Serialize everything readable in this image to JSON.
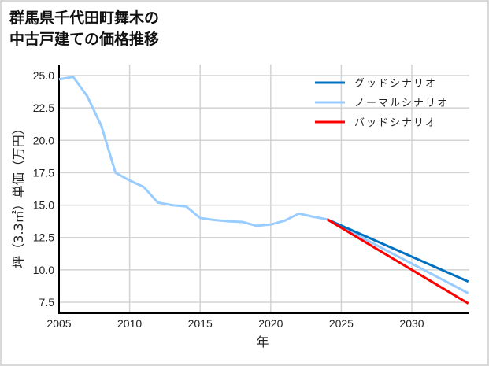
{
  "title_line1": "群馬県千代田町舞木の",
  "title_line2": "中古戸建ての価格推移",
  "chart_data": {
    "type": "line",
    "title": "群馬県千代田町舞木の中古戸建ての価格推移",
    "xlabel": "年",
    "ylabel": "坪（3.3㎡）単価（万円）",
    "xlim": [
      2005,
      2034
    ],
    "ylim": [
      6.6,
      25.7
    ],
    "x_ticks": [
      2005,
      2010,
      2015,
      2020,
      2025,
      2030
    ],
    "y_ticks": [
      7.5,
      10.0,
      12.5,
      15.0,
      17.5,
      20.0,
      22.5,
      25.0
    ],
    "grid": true,
    "legend_position": "upper right",
    "series": [
      {
        "name": "グッドシナリオ",
        "color": "#0070c0",
        "x": [
          2024,
          2034
        ],
        "values": [
          13.9,
          9.1
        ]
      },
      {
        "name": "ノーマルシナリオ",
        "color": "#99ccff",
        "x": [
          2005,
          2006,
          2007,
          2008,
          2009,
          2010,
          2011,
          2012,
          2013,
          2014,
          2015,
          2016,
          2017,
          2018,
          2019,
          2020,
          2021,
          2022,
          2023,
          2024,
          2034
        ],
        "values": [
          24.7,
          24.9,
          23.4,
          21.1,
          17.5,
          16.9,
          16.4,
          15.2,
          15.0,
          14.9,
          14.0,
          13.85,
          13.75,
          13.7,
          13.4,
          13.5,
          13.8,
          14.35,
          14.1,
          13.9,
          8.2
        ]
      },
      {
        "name": "バッドシナリオ",
        "color": "#ff0000",
        "x": [
          2024,
          2034
        ],
        "values": [
          13.9,
          7.4
        ]
      }
    ]
  }
}
